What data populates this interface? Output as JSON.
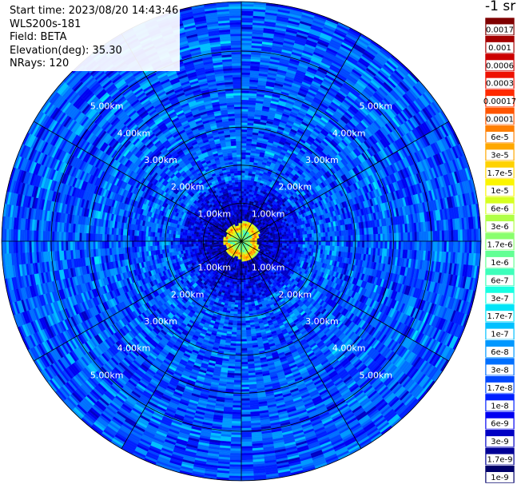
{
  "header": {
    "start_time": "Start time: 2023/08/20 14:43:46",
    "station": "WLS200s-181",
    "field": "Field: BETA",
    "elevation": "Elevation(deg): 35.30",
    "nrays": "NRays: 120"
  },
  "colorbar": {
    "units_label": "-1 sr",
    "levels": [
      {
        "label": "0.0017",
        "color": "#7f0000"
      },
      {
        "label": "0.001",
        "color": "#a50000"
      },
      {
        "label": "0.0006",
        "color": "#cc0000"
      },
      {
        "label": "0.0003",
        "color": "#ee1100"
      },
      {
        "label": "0.00017",
        "color": "#ff2a00"
      },
      {
        "label": "0.0001",
        "color": "#ff5500"
      },
      {
        "label": "6e-5",
        "color": "#ff7f00"
      },
      {
        "label": "3e-5",
        "color": "#ffa800"
      },
      {
        "label": "1.7e-5",
        "color": "#ffd200"
      },
      {
        "label": "1e-5",
        "color": "#fbf500"
      },
      {
        "label": "6e-6",
        "color": "#d7ff1f"
      },
      {
        "label": "3e-6",
        "color": "#b0ff46"
      },
      {
        "label": "1.7e-6",
        "color": "#8aff6d"
      },
      {
        "label": "1e-6",
        "color": "#63ff94"
      },
      {
        "label": "6e-7",
        "color": "#3dffba"
      },
      {
        "label": "3e-7",
        "color": "#16ffe1"
      },
      {
        "label": "1.7e-7",
        "color": "#00e4f8"
      },
      {
        "label": "1e-7",
        "color": "#00c0ff"
      },
      {
        "label": "6e-8",
        "color": "#0098ff"
      },
      {
        "label": "3e-8",
        "color": "#0070ff"
      },
      {
        "label": "1.7e-8",
        "color": "#0048ff"
      },
      {
        "label": "1e-8",
        "color": "#0020ff"
      },
      {
        "label": "6e-9",
        "color": "#0000f1"
      },
      {
        "label": "3e-9",
        "color": "#0000c4"
      },
      {
        "label": "1.7e-9",
        "color": "#000096"
      },
      {
        "label": "1e-9",
        "color": "#00006a"
      }
    ]
  },
  "chart_data": {
    "type": "heatmap",
    "projection": "polar-ppi",
    "field": "BETA",
    "units": "-1 sr",
    "elevation_deg": 35.3,
    "nrays": 120,
    "range_rings_km": [
      1,
      2,
      3,
      4,
      5
    ],
    "range_ring_labels": [
      "1.00km",
      "2.00km",
      "3.00km",
      "4.00km",
      "5.00km"
    ],
    "max_range_km": 6.3,
    "spoke_angles_deg": [
      0,
      30,
      60,
      90,
      120,
      150,
      180,
      210,
      240,
      270,
      300,
      330
    ],
    "legend_placement": "right",
    "scale": "log",
    "value_range": [
      1e-09,
      0.0017
    ],
    "field_summary": [
      {
        "range_km": [
          0.0,
          0.25
        ],
        "typical_value": 3e-07
      },
      {
        "range_km": [
          0.25,
          0.45
        ],
        "typical_value": 1.7e-05
      },
      {
        "range_km": [
          0.45,
          1.5
        ],
        "typical_value": 1e-08
      },
      {
        "range_km": [
          1.5,
          6.3
        ],
        "typical_value": 6e-08
      }
    ]
  }
}
